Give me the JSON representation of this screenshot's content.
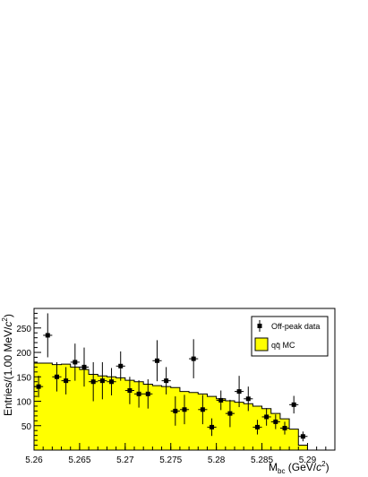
{
  "chart_data": {
    "type": "histogram-with-points",
    "xlabel": "M_bc (GeV/c^2)",
    "xlabel_parts": {
      "main": "M",
      "sub": "bc",
      "tail": " (GeV/",
      "c": "c",
      "sup": "2",
      "close": ")"
    },
    "ylabel": "Entries/(1.00 MeV/c^2)",
    "ylabel_parts": {
      "main": "Entries/(1.00 MeV/",
      "c": "c",
      "sup": "2",
      "close": ")"
    },
    "xlim": [
      5.26,
      5.293
    ],
    "ylim": [
      0,
      290
    ],
    "x_ticks": [
      {
        "value": 5.26,
        "label": "5.26"
      },
      {
        "value": 5.265,
        "label": "5.265"
      },
      {
        "value": 5.27,
        "label": "5.27"
      },
      {
        "value": 5.275,
        "label": "5.275"
      },
      {
        "value": 5.28,
        "label": "5.28"
      },
      {
        "value": 5.285,
        "label": "5.285"
      },
      {
        "value": 5.29,
        "label": "5.29"
      }
    ],
    "y_ticks": [
      {
        "value": 50,
        "label": "50"
      },
      {
        "value": 100,
        "label": "100"
      },
      {
        "value": 150,
        "label": "150"
      },
      {
        "value": 200,
        "label": "200"
      },
      {
        "value": 250,
        "label": "250"
      }
    ],
    "legend": {
      "placement": "top-right",
      "entries": [
        {
          "label": "Off-peak data",
          "kind": "marker"
        },
        {
          "label": "qq̄ MC",
          "kind": "fill"
        }
      ]
    },
    "series": [
      {
        "name": "qq̄ MC",
        "kind": "histogram",
        "color": "#ffff00",
        "bin_width": 0.001,
        "bin_edges_start": 5.26,
        "values": [
          178,
          178,
          175,
          176,
          170,
          165,
          155,
          152,
          150,
          148,
          143,
          140,
          135,
          132,
          130,
          128,
          120,
          118,
          115,
          110,
          105,
          101,
          98,
          95,
          90,
          85,
          75,
          64,
          43,
          10
        ]
      },
      {
        "name": "Off-peak data",
        "kind": "points",
        "color": "#000000",
        "points": [
          {
            "x": 5.2605,
            "y": 130,
            "err": 22
          },
          {
            "x": 5.2615,
            "y": 235,
            "err": 45
          },
          {
            "x": 5.2625,
            "y": 150,
            "err": 30
          },
          {
            "x": 5.2635,
            "y": 142,
            "err": 28
          },
          {
            "x": 5.2645,
            "y": 180,
            "err": 38
          },
          {
            "x": 5.2655,
            "y": 170,
            "err": 40
          },
          {
            "x": 5.2665,
            "y": 140,
            "err": 40
          },
          {
            "x": 5.2675,
            "y": 142,
            "err": 38
          },
          {
            "x": 5.2685,
            "y": 140,
            "err": 28
          },
          {
            "x": 5.2695,
            "y": 172,
            "err": 30
          },
          {
            "x": 5.2705,
            "y": 122,
            "err": 28
          },
          {
            "x": 5.2715,
            "y": 115,
            "err": 28
          },
          {
            "x": 5.2725,
            "y": 115,
            "err": 30
          },
          {
            "x": 5.2735,
            "y": 183,
            "err": 42
          },
          {
            "x": 5.2745,
            "y": 142,
            "err": 28
          },
          {
            "x": 5.2755,
            "y": 80,
            "err": 30
          },
          {
            "x": 5.2765,
            "y": 83,
            "err": 30
          },
          {
            "x": 5.2775,
            "y": 187,
            "err": 40
          },
          {
            "x": 5.2785,
            "y": 83,
            "err": 30
          },
          {
            "x": 5.2795,
            "y": 47,
            "err": 18
          },
          {
            "x": 5.2805,
            "y": 102,
            "err": 20
          },
          {
            "x": 5.2815,
            "y": 75,
            "err": 28
          },
          {
            "x": 5.2825,
            "y": 120,
            "err": 32
          },
          {
            "x": 5.2835,
            "y": 105,
            "err": 25
          },
          {
            "x": 5.2845,
            "y": 47,
            "err": 15
          },
          {
            "x": 5.2855,
            "y": 68,
            "err": 18
          },
          {
            "x": 5.2865,
            "y": 58,
            "err": 15
          },
          {
            "x": 5.2875,
            "y": 45,
            "err": 13
          },
          {
            "x": 5.2885,
            "y": 93,
            "err": 18
          },
          {
            "x": 5.2895,
            "y": 28,
            "err": 10
          }
        ]
      }
    ]
  }
}
